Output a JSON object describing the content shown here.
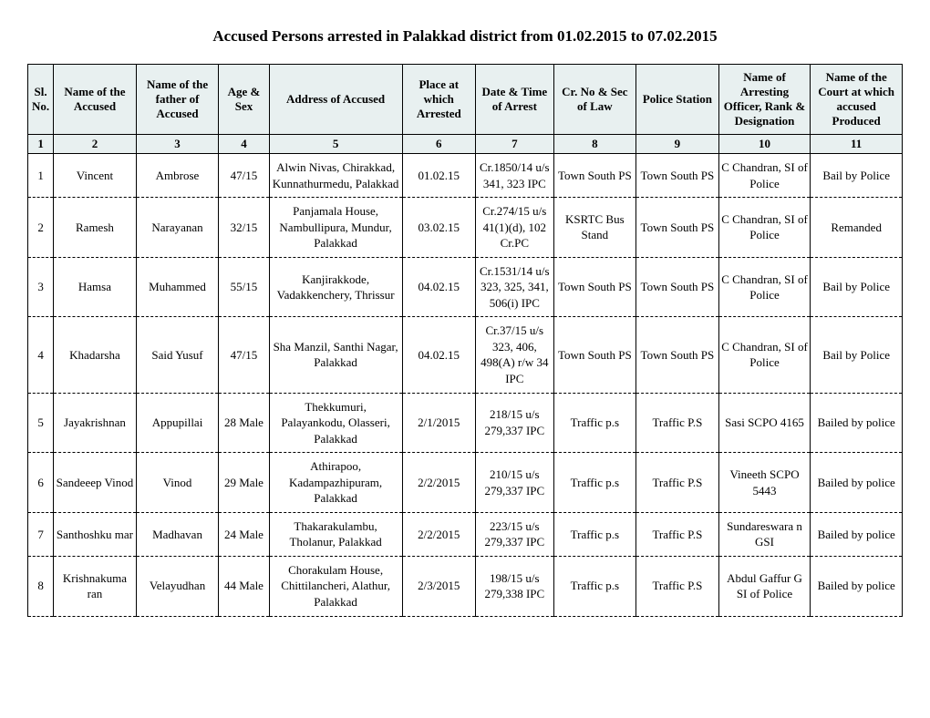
{
  "title": "Accused Persons arrested in  Palakkad  district from  01.02.2015 to 07.02.2015",
  "columns": [
    {
      "label": "Sl. No.",
      "num": "1",
      "class": "c1"
    },
    {
      "label": "Name of the Accused",
      "num": "2",
      "class": "c2"
    },
    {
      "label": "Name of the father of Accused",
      "num": "3",
      "class": "c3"
    },
    {
      "label": "Age & Sex",
      "num": "4",
      "class": "c4"
    },
    {
      "label": "Address of Accused",
      "num": "5",
      "class": "c5"
    },
    {
      "label": "Place at which Arrested",
      "num": "6",
      "class": "c6"
    },
    {
      "label": "Date & Time of Arrest",
      "num": "7",
      "class": "c7"
    },
    {
      "label": "Cr. No & Sec of Law",
      "num": "8",
      "class": "c8"
    },
    {
      "label": "Police Station",
      "num": "9",
      "class": "c9"
    },
    {
      "label": "Name of Arresting Officer, Rank & Designation",
      "num": "10",
      "class": "c10"
    },
    {
      "label": "Name of the Court at which accused Produced",
      "num": "11",
      "class": "c11"
    }
  ],
  "rows": [
    {
      "sl": "1",
      "name": "Vincent",
      "father": "Ambrose",
      "age": "47/15",
      "addr": "Alwin Nivas, Chirakkad, Kunnathurmedu, Palakkad",
      "place": "01.02.15",
      "date": "Cr.1850/14 u/s 341, 323 IPC",
      "cr": "Town South PS",
      "ps": "Town South PS",
      "officer": "C Chandran, SI of Police",
      "court": "Bail by Police"
    },
    {
      "sl": "2",
      "name": "Ramesh",
      "father": "Narayanan",
      "age": "32/15",
      "addr": "Panjamala House, Nambullipura, Mundur, Palakkad",
      "place": "03.02.15",
      "date": "Cr.274/15 u/s 41(1)(d), 102 Cr.PC",
      "cr": "KSRTC Bus Stand",
      "ps": "Town South PS",
      "officer": "C Chandran, SI of Police",
      "court": "Remanded"
    },
    {
      "sl": "3",
      "name": "Hamsa",
      "father": "Muhammed",
      "age": "55/15",
      "addr": "Kanjirakkode, Vadakkenchery, Thrissur",
      "place": "04.02.15",
      "date": "Cr.1531/14 u/s 323, 325, 341, 506(i) IPC",
      "cr": "Town South PS",
      "ps": "Town South PS",
      "officer": "C Chandran, SI of Police",
      "court": "Bail by Police"
    },
    {
      "sl": "4",
      "name": "Khadarsha",
      "father": "Said Yusuf",
      "age": "47/15",
      "addr": "Sha Manzil, Santhi Nagar, Palakkad",
      "place": "04.02.15",
      "date": "Cr.37/15 u/s 323, 406, 498(A) r/w 34 IPC",
      "cr": "Town South PS",
      "ps": "Town South PS",
      "officer": "C Chandran, SI of Police",
      "court": "Bail by Police"
    },
    {
      "sl": "5",
      "name": "Jayakrishnan",
      "father": "Appupillai",
      "age": "28 Male",
      "addr": "Thekkumuri, Palayankodu, Olasseri, Palakkad",
      "place": "2/1/2015",
      "date": "218/15 u/s 279,337 IPC",
      "cr": "Traffic p.s",
      "ps": "Traffic P.S",
      "officer": "Sasi SCPO 4165",
      "court": "Bailed by police"
    },
    {
      "sl": "6",
      "name": "Sandeeep Vinod",
      "father": "Vinod",
      "age": "29 Male",
      "addr": "Athirapoo, Kadampazhipuram, Palakkad",
      "place": "2/2/2015",
      "date": "210/15 u/s 279,337 IPC",
      "cr": "Traffic p.s",
      "ps": "Traffic P.S",
      "officer": "Vineeth SCPO 5443",
      "court": "Bailed by police"
    },
    {
      "sl": "7",
      "name": "Santhoshku mar",
      "father": "Madhavan",
      "age": "24 Male",
      "addr": "Thakarakulambu, Tholanur, Palakkad",
      "place": "2/2/2015",
      "date": "223/15 u/s 279,337 IPC",
      "cr": "Traffic p.s",
      "ps": "Traffic P.S",
      "officer": "Sundareswara n GSI",
      "court": "Bailed by police"
    },
    {
      "sl": "8",
      "name": "Krishnakuma ran",
      "father": "Velayudhan",
      "age": "44 Male",
      "addr": "Chorakulam House, Chittilancheri, Alathur, Palakkad",
      "place": "2/3/2015",
      "date": "198/15 u/s 279,338 IPC",
      "cr": "Traffic p.s",
      "ps": "Traffic P.S",
      "officer": "Abdul Gaffur G SI of Police",
      "court": "Bailed by police"
    }
  ],
  "style": {
    "title_fontsize": 17,
    "cell_fontsize": 13,
    "header_bg": "#e8f0f0",
    "border_color": "#000000",
    "font_family": "Times New Roman"
  }
}
